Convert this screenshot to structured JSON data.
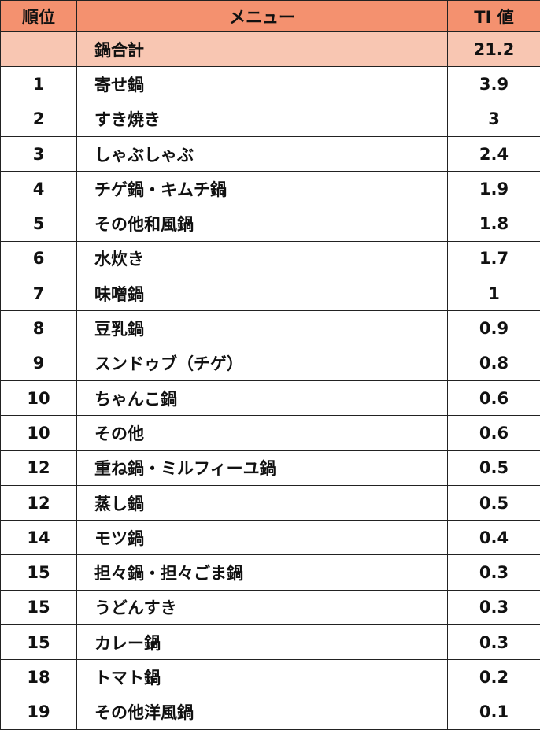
{
  "table": {
    "header": [
      "順位",
      "メニュー",
      "TI 値"
    ],
    "total": {
      "label": "鍋合計",
      "value": 21.2
    },
    "rows": [
      [
        1,
        "寄せ鍋",
        3.9
      ],
      [
        2,
        "すき焼き",
        3
      ],
      [
        3,
        "しゃぶしゃぶ",
        2.4
      ],
      [
        4,
        "チゲ鍋・キムチ鍋",
        1.9
      ],
      [
        5,
        "その他和風鍋",
        1.8
      ],
      [
        6,
        "水炊き",
        1.7
      ],
      [
        7,
        "味噌鍋",
        1
      ],
      [
        8,
        "豆乳鍋",
        0.9
      ],
      [
        9,
        "スンドゥブ（チゲ）",
        0.8
      ],
      [
        10,
        "ちゃんこ鍋",
        0.6
      ],
      [
        10,
        "その他",
        0.6
      ],
      [
        12,
        "重ね鍋・ミルフィーユ鍋",
        0.5
      ],
      [
        12,
        "蒸し鍋",
        0.5
      ],
      [
        14,
        "モツ鍋",
        0.4
      ],
      [
        15,
        "担々鍋・担々ごま鍋",
        0.3
      ],
      [
        15,
        "うどんすき",
        0.3
      ],
      [
        15,
        "カレー鍋",
        0.3
      ],
      [
        18,
        "トマト鍋",
        0.2
      ],
      [
        19,
        "その他洋風鍋",
        0.1
      ]
    ]
  }
}
